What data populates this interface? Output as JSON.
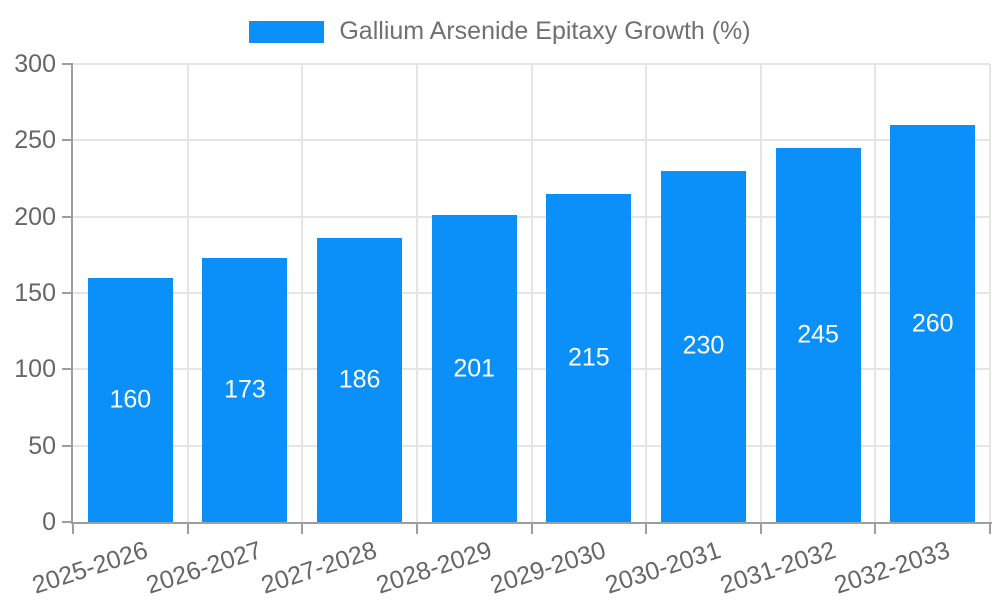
{
  "legend": {
    "label": "Gallium Arsenide Epitaxy Growth (%)"
  },
  "chart_data": {
    "type": "bar",
    "title": "Gallium Arsenide Epitaxy Growth (%)",
    "categories": [
      "2025-2026",
      "2026-2027",
      "2027-2028",
      "2028-2029",
      "2029-2030",
      "2030-2031",
      "2031-2032",
      "2032-2033"
    ],
    "values": [
      160,
      173,
      186,
      201,
      215,
      230,
      245,
      260
    ],
    "xlabel": "",
    "ylabel": "",
    "ylim": [
      0,
      300
    ],
    "yticks": [
      0,
      50,
      100,
      150,
      200,
      250,
      300
    ],
    "grid": true,
    "legend_position": "top",
    "colors": {
      "bar": "#0a90f8",
      "bar_label_text": "#ffffff",
      "axis_text": "#666666",
      "legend_text": "#707070",
      "gridline": "#e5e5e5",
      "axis_line": "#9e9e9e"
    }
  }
}
